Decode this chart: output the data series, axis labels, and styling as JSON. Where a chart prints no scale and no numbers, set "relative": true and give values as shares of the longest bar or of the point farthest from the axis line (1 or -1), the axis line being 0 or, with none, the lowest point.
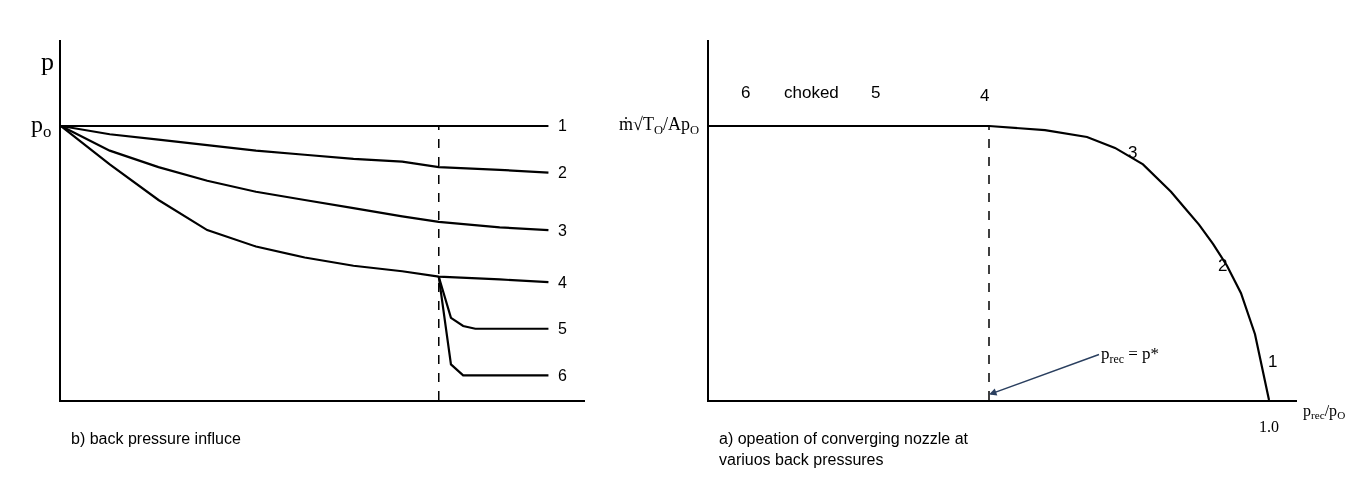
{
  "chart_data": [
    {
      "type": "line",
      "relative": true,
      "title": "b) back pressure influce",
      "ylabel": "p",
      "legend": false,
      "marker": "none",
      "line_style": "solid",
      "categories": [
        null,
        null,
        null,
        null,
        null,
        null,
        null,
        null,
        null,
        null,
        null,
        null,
        null,
        null,
        null,
        null,
        null,
        null,
        null,
        null,
        null,
        null,
        null,
        null,
        null,
        null,
        null,
        null,
        null,
        null,
        null,
        null,
        null,
        null,
        null,
        null,
        null,
        null,
        null,
        null,
        null,
        null,
        null,
        null
      ],
      "annotations": [
        "p$_{o}$"
      ],
      "series": [
        {
          "name": "1",
          "color": "#000000",
          "values": [
            1,
            null,
            null,
            null,
            null,
            null,
            null,
            null,
            null,
            null,
            null,
            null,
            null,
            null,
            null,
            null,
            null,
            null,
            null,
            null,
            null,
            null,
            null,
            null,
            null,
            null,
            null,
            null,
            null,
            null,
            null,
            null,
            null,
            null,
            null,
            null,
            null,
            null,
            null,
            null,
            1,
            null,
            null,
            null
          ]
        },
        {
          "name": "2",
          "color": "#000000",
          "values": [
            1,
            null,
            null,
            null,
            0.97,
            null,
            null,
            null,
            0.95,
            null,
            null,
            null,
            0.93,
            null,
            null,
            null,
            0.91,
            null,
            null,
            null,
            0.895,
            null,
            null,
            null,
            0.88,
            null,
            null,
            null,
            0.87,
            null,
            null,
            0.85,
            null,
            null,
            null,
            null,
            0.84,
            null,
            null,
            null,
            0.83,
            null,
            null,
            null
          ]
        },
        {
          "name": "3",
          "color": "#000000",
          "values": [
            1,
            null,
            null,
            null,
            0.91,
            null,
            null,
            null,
            0.85,
            null,
            null,
            null,
            0.8,
            null,
            null,
            null,
            0.76,
            null,
            null,
            null,
            0.73,
            null,
            null,
            null,
            0.7,
            null,
            null,
            null,
            0.67,
            null,
            null,
            0.65,
            null,
            null,
            null,
            null,
            0.63,
            null,
            null,
            null,
            0.62,
            null,
            null,
            null
          ]
        },
        {
          "name": "4",
          "color": "#000000",
          "values": [
            1,
            null,
            null,
            null,
            0.86,
            null,
            null,
            null,
            0.73,
            null,
            null,
            null,
            0.62,
            null,
            null,
            null,
            0.56,
            null,
            null,
            null,
            0.52,
            null,
            null,
            null,
            0.49,
            null,
            null,
            null,
            0.47,
            null,
            null,
            0.45,
            null,
            null,
            null,
            null,
            0.44,
            null,
            null,
            null,
            0.43,
            null,
            null,
            null
          ]
        },
        {
          "name": "5",
          "color": "#000000",
          "values": [
            null,
            null,
            null,
            null,
            null,
            null,
            null,
            null,
            null,
            null,
            null,
            null,
            null,
            null,
            null,
            null,
            null,
            null,
            null,
            null,
            null,
            null,
            null,
            null,
            null,
            null,
            null,
            null,
            null,
            null,
            null,
            0.45,
            0.3,
            0.27,
            0.26,
            null,
            null,
            null,
            null,
            null,
            0.26,
            null,
            null,
            null
          ]
        },
        {
          "name": "6",
          "color": "#000000",
          "values": [
            null,
            null,
            null,
            null,
            null,
            null,
            null,
            null,
            null,
            null,
            null,
            null,
            null,
            null,
            null,
            null,
            null,
            null,
            null,
            null,
            null,
            null,
            null,
            null,
            null,
            null,
            null,
            null,
            null,
            null,
            null,
            0.45,
            0.13,
            0.09,
            null,
            null,
            null,
            null,
            null,
            null,
            0.09,
            null,
            null,
            null
          ]
        }
      ]
    },
    {
      "type": "line",
      "relative": true,
      "title": "a) opeation of converging nozzle at variuos back pressures",
      "ylabel": "ṁ√T$_{O}$/Ap$_{O}$",
      "xlabel": "p$_{rec}$/p$_{O}$",
      "legend": false,
      "marker": "none",
      "line_style": "solid",
      "categories": [
        null,
        null,
        null,
        null,
        null,
        null,
        null,
        null,
        null,
        null,
        null,
        null,
        null,
        null,
        null,
        null,
        null,
        null,
        null,
        null,
        null,
        null,
        null,
        null,
        null,
        null,
        null,
        null,
        null,
        null,
        null,
        null,
        null,
        null,
        null,
        null,
        null,
        null,
        null,
        null,
        null,
        null,
        null
      ],
      "annotations": [
        "6",
        "choked",
        "5",
        "4",
        "3",
        "2",
        "1",
        "1.0",
        "p$_{rec}$ = p*"
      ],
      "series": [
        {
          "color": "#000000",
          "values": [
            1,
            null,
            null,
            null,
            null,
            null,
            null,
            null,
            null,
            null,
            null,
            null,
            null,
            null,
            null,
            null,
            null,
            null,
            null,
            null,
            1,
            null,
            null,
            null,
            0.985,
            null,
            null,
            0.96,
            null,
            0.92,
            null,
            0.86,
            null,
            0.76,
            0.7,
            0.64,
            0.57,
            0.49,
            0.39,
            0.24,
            0,
            null,
            null
          ]
        }
      ]
    }
  ]
}
